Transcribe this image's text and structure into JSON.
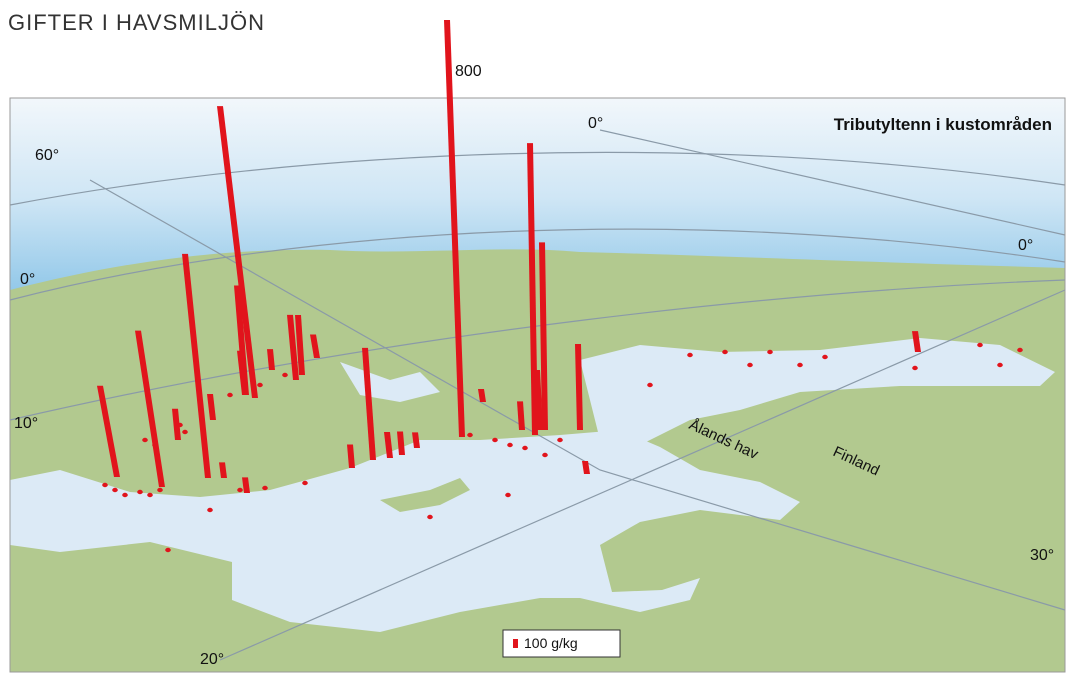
{
  "title": "GIFTER I HAVSMILJÖN",
  "map_label": "Tributyltenn i kustområden",
  "graticule_labels": [
    "60°",
    "0°",
    "0°",
    "0°",
    "10°",
    "20°",
    "30°"
  ],
  "places": [
    "Ålands hav",
    "Finland"
  ],
  "legend": "100 g/kg",
  "bars": {
    "values": [
      800,
      560,
      560,
      430,
      300,
      175,
      360,
      210,
      215,
      165,
      125,
      115,
      45,
      85,
      60,
      45,
      50,
      45,
      30,
      30,
      30,
      40,
      25,
      25,
      55,
      115,
      40,
      50
    ]
  }
}
